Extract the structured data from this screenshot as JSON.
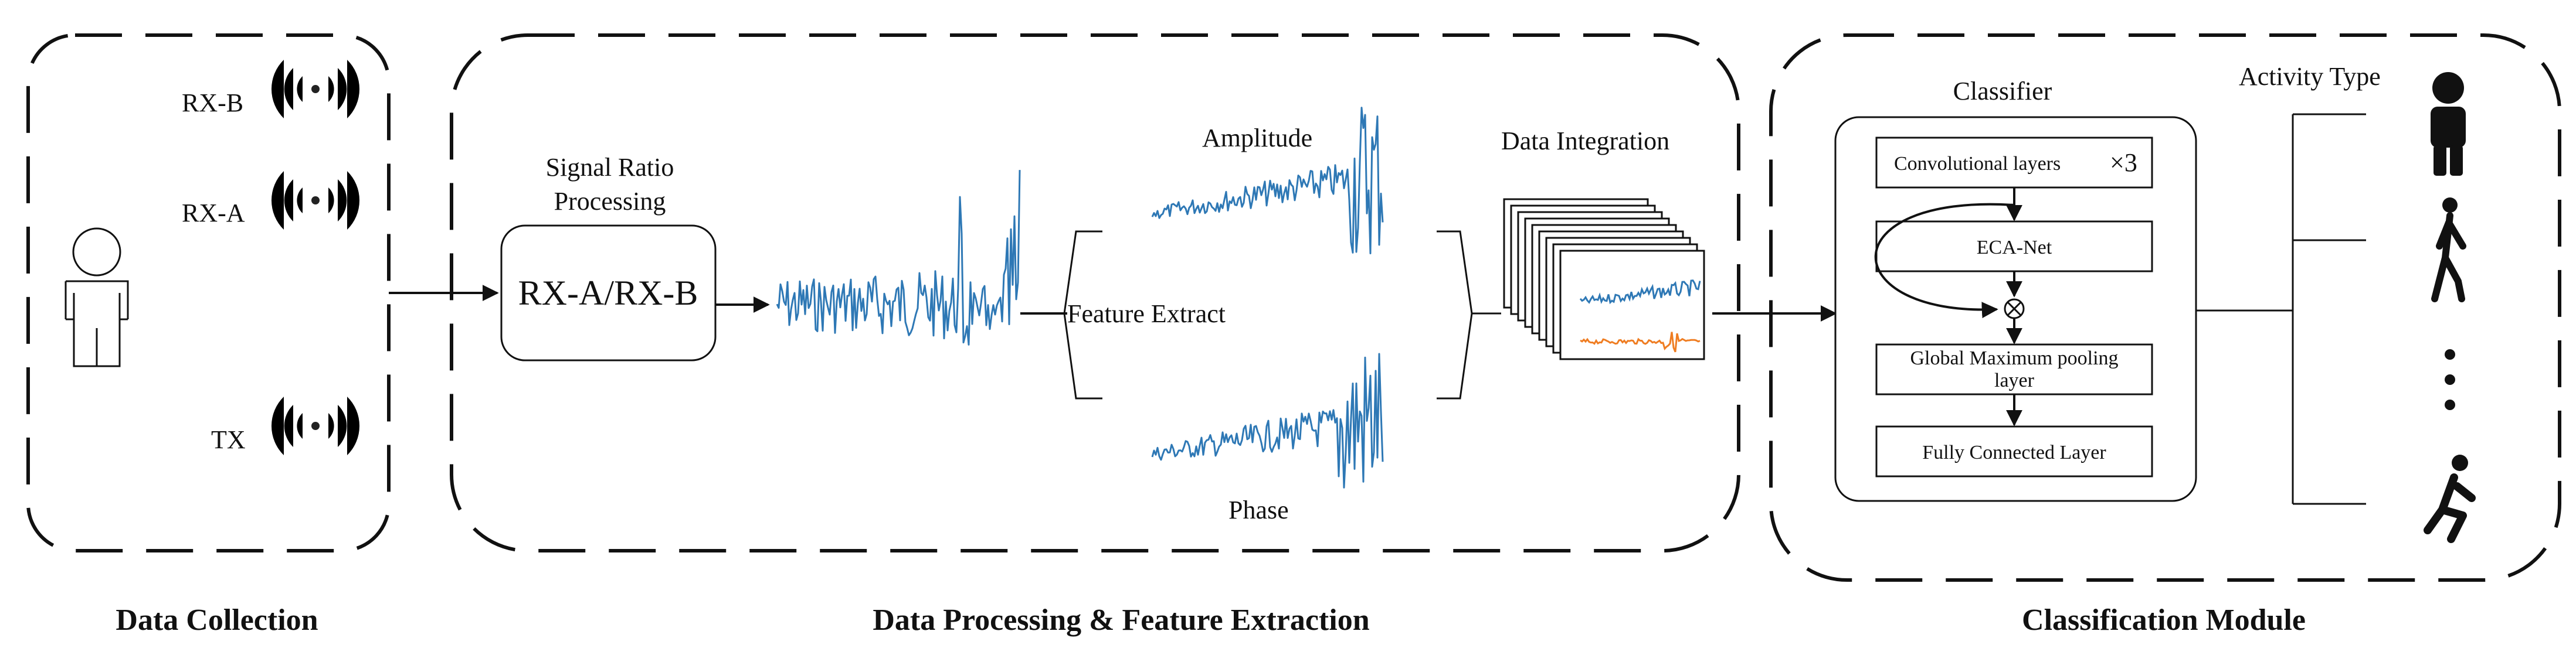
{
  "sections": {
    "collection": {
      "title": "Data Collection",
      "antennas": [
        {
          "label": "RX-B"
        },
        {
          "label": "RX-A"
        },
        {
          "label": "TX"
        }
      ]
    },
    "processing": {
      "title": "Data Processing & Feature Extraction",
      "signal_ratio_title_line1": "Signal Ratio",
      "signal_ratio_title_line2": "Processing",
      "ratio_box_label": "RX-A/RX-B",
      "feature_extract_label": "Feature Extract",
      "amplitude_label": "Amplitude",
      "phase_label": "Phase",
      "integration_label": "Data Integration"
    },
    "classification": {
      "title": "Classification Module",
      "classifier_title": "Classifier",
      "activity_type_label": "Activity Type",
      "layers": [
        {
          "label": "Convolutional layers",
          "multiplier": "×3"
        },
        {
          "label": "ECA-Net"
        },
        {
          "label_line1": "Global Maximum pooling",
          "label_line2": "layer"
        },
        {
          "label": "Fully Connected Layer"
        }
      ],
      "multiply_symbol": "⊗",
      "activities": [
        {
          "icon": "standing-person-icon"
        },
        {
          "icon": "walking-person-icon"
        },
        {
          "icon": "vertical-ellipsis-icon"
        },
        {
          "icon": "falling-person-icon"
        }
      ]
    }
  },
  "colors": {
    "signal_blue": "#2e78b5",
    "signal_orange": "#ef7d22",
    "ink": "#111111"
  }
}
